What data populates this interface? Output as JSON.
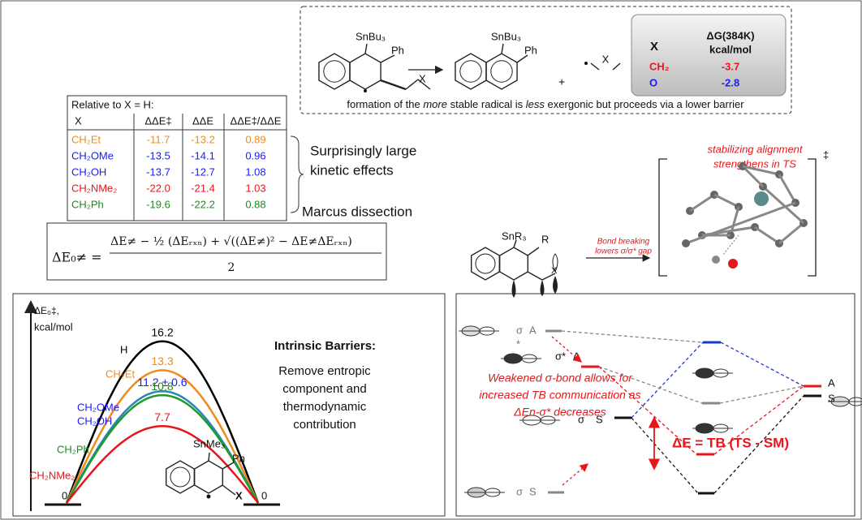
{
  "reaction": {
    "reactant": [
      "SnBu₃",
      "Ph",
      "X"
    ],
    "product": [
      "SnBu₃",
      "Ph"
    ],
    "plus": "+",
    "radical": "X",
    "energy_table": {
      "headers": [
        "X",
        "ΔG(384K)",
        "kcal/mol"
      ],
      "rows": [
        {
          "x": "CH₂",
          "value": "-3.7",
          "color": "#e8161b"
        },
        {
          "x": "O",
          "value": "-2.8",
          "color": "#1a1aff"
        }
      ]
    },
    "caption": [
      "formation of the ",
      "more",
      " stable radical is ",
      "less",
      " exergonic but proceeds via a lower barrier"
    ]
  },
  "table": {
    "caption": "Relative to X = H:",
    "headers": [
      "X",
      "ΔΔE‡",
      "ΔΔE",
      "ΔΔE‡/ΔΔE"
    ],
    "rows": [
      [
        "CH₂Et",
        "-11.7",
        "-13.2",
        "0.89"
      ],
      [
        "CH₂OMe",
        "-13.5",
        "-14.1",
        "0.96"
      ],
      [
        "CH₂OH",
        "-13.7",
        "-12.7",
        "1.08"
      ],
      [
        "CH₂NMe₂",
        "-22.0",
        "-21.4",
        "1.03"
      ],
      [
        "CH₂Ph",
        "-19.6",
        "-22.2",
        "0.88"
      ]
    ],
    "row_colors": [
      "#f08a1c",
      "#1a1aff",
      "#1a1aff",
      "#e8161b",
      "#1f8a1f"
    ]
  },
  "brace_labels": [
    "Surprisingly large",
    "kinetic effects"
  ],
  "marcus": "Marcus dissection",
  "equation": {
    "lhs": "ΔE₀≠ =",
    "numerator": "ΔE≠ − ½ (ΔEᵣₓₙ) + √((ΔE≠)² − ΔE≠ΔEᵣₓₙ)",
    "denominator": "2"
  },
  "mechanism": {
    "substituents": [
      "SnR₃",
      "R",
      "X"
    ],
    "arrow_label": [
      "Bond breaking",
      "lowers σ/σ* gap"
    ],
    "ts_note": [
      "stabilizing alignment",
      "strengthens in TS"
    ],
    "ts_mark": "‡"
  },
  "barriers": {
    "axis_label": [
      "ΔE₀‡,",
      "kcal/mol"
    ],
    "curves": [
      {
        "value": 16.2,
        "color": "#000000",
        "labels": [
          "H"
        ]
      },
      {
        "value": 13.3,
        "color": "#f08a1c",
        "labels": [
          "CH₂Et"
        ]
      },
      {
        "value": 11.2,
        "error": 0.6,
        "value_label": "11.2 ± 0.6",
        "color": "#2b86b8",
        "labels": [
          "CH₂OMe",
          "CH₂OH"
        ]
      },
      {
        "value": 10.8,
        "color": "#1f9a2f",
        "labels": [
          "CH₂Ph"
        ]
      },
      {
        "value": 7.7,
        "color": "#e8161b",
        "labels": [
          "CH₂NMe₂"
        ]
      }
    ],
    "label_colors": [
      "#000000",
      "#f08a1c",
      "#1a1aff",
      "#1f8a1f",
      "#e8161b"
    ],
    "zero_labels": [
      "0",
      "0"
    ],
    "heading": "Intrinsic Barriers:",
    "text": [
      "Remove entropic",
      "component and",
      "thermodynamic",
      "contribution"
    ],
    "molecule": [
      "SnMe₃",
      "Ph",
      "X"
    ]
  },
  "orbitals": {
    "levels": [
      [
        "σ",
        "*",
        "A"
      ],
      [
        "σ*",
        "A"
      ],
      [
        "σ",
        "S"
      ],
      [
        "σ",
        "S"
      ]
    ],
    "note": [
      "Weakened σ-bond allows for",
      "increased TB communication as",
      "ΔEn-σ* decreases"
    ],
    "delta": "ΔE = TB (TS - SM)",
    "right_labels": [
      "A",
      "S"
    ]
  }
}
